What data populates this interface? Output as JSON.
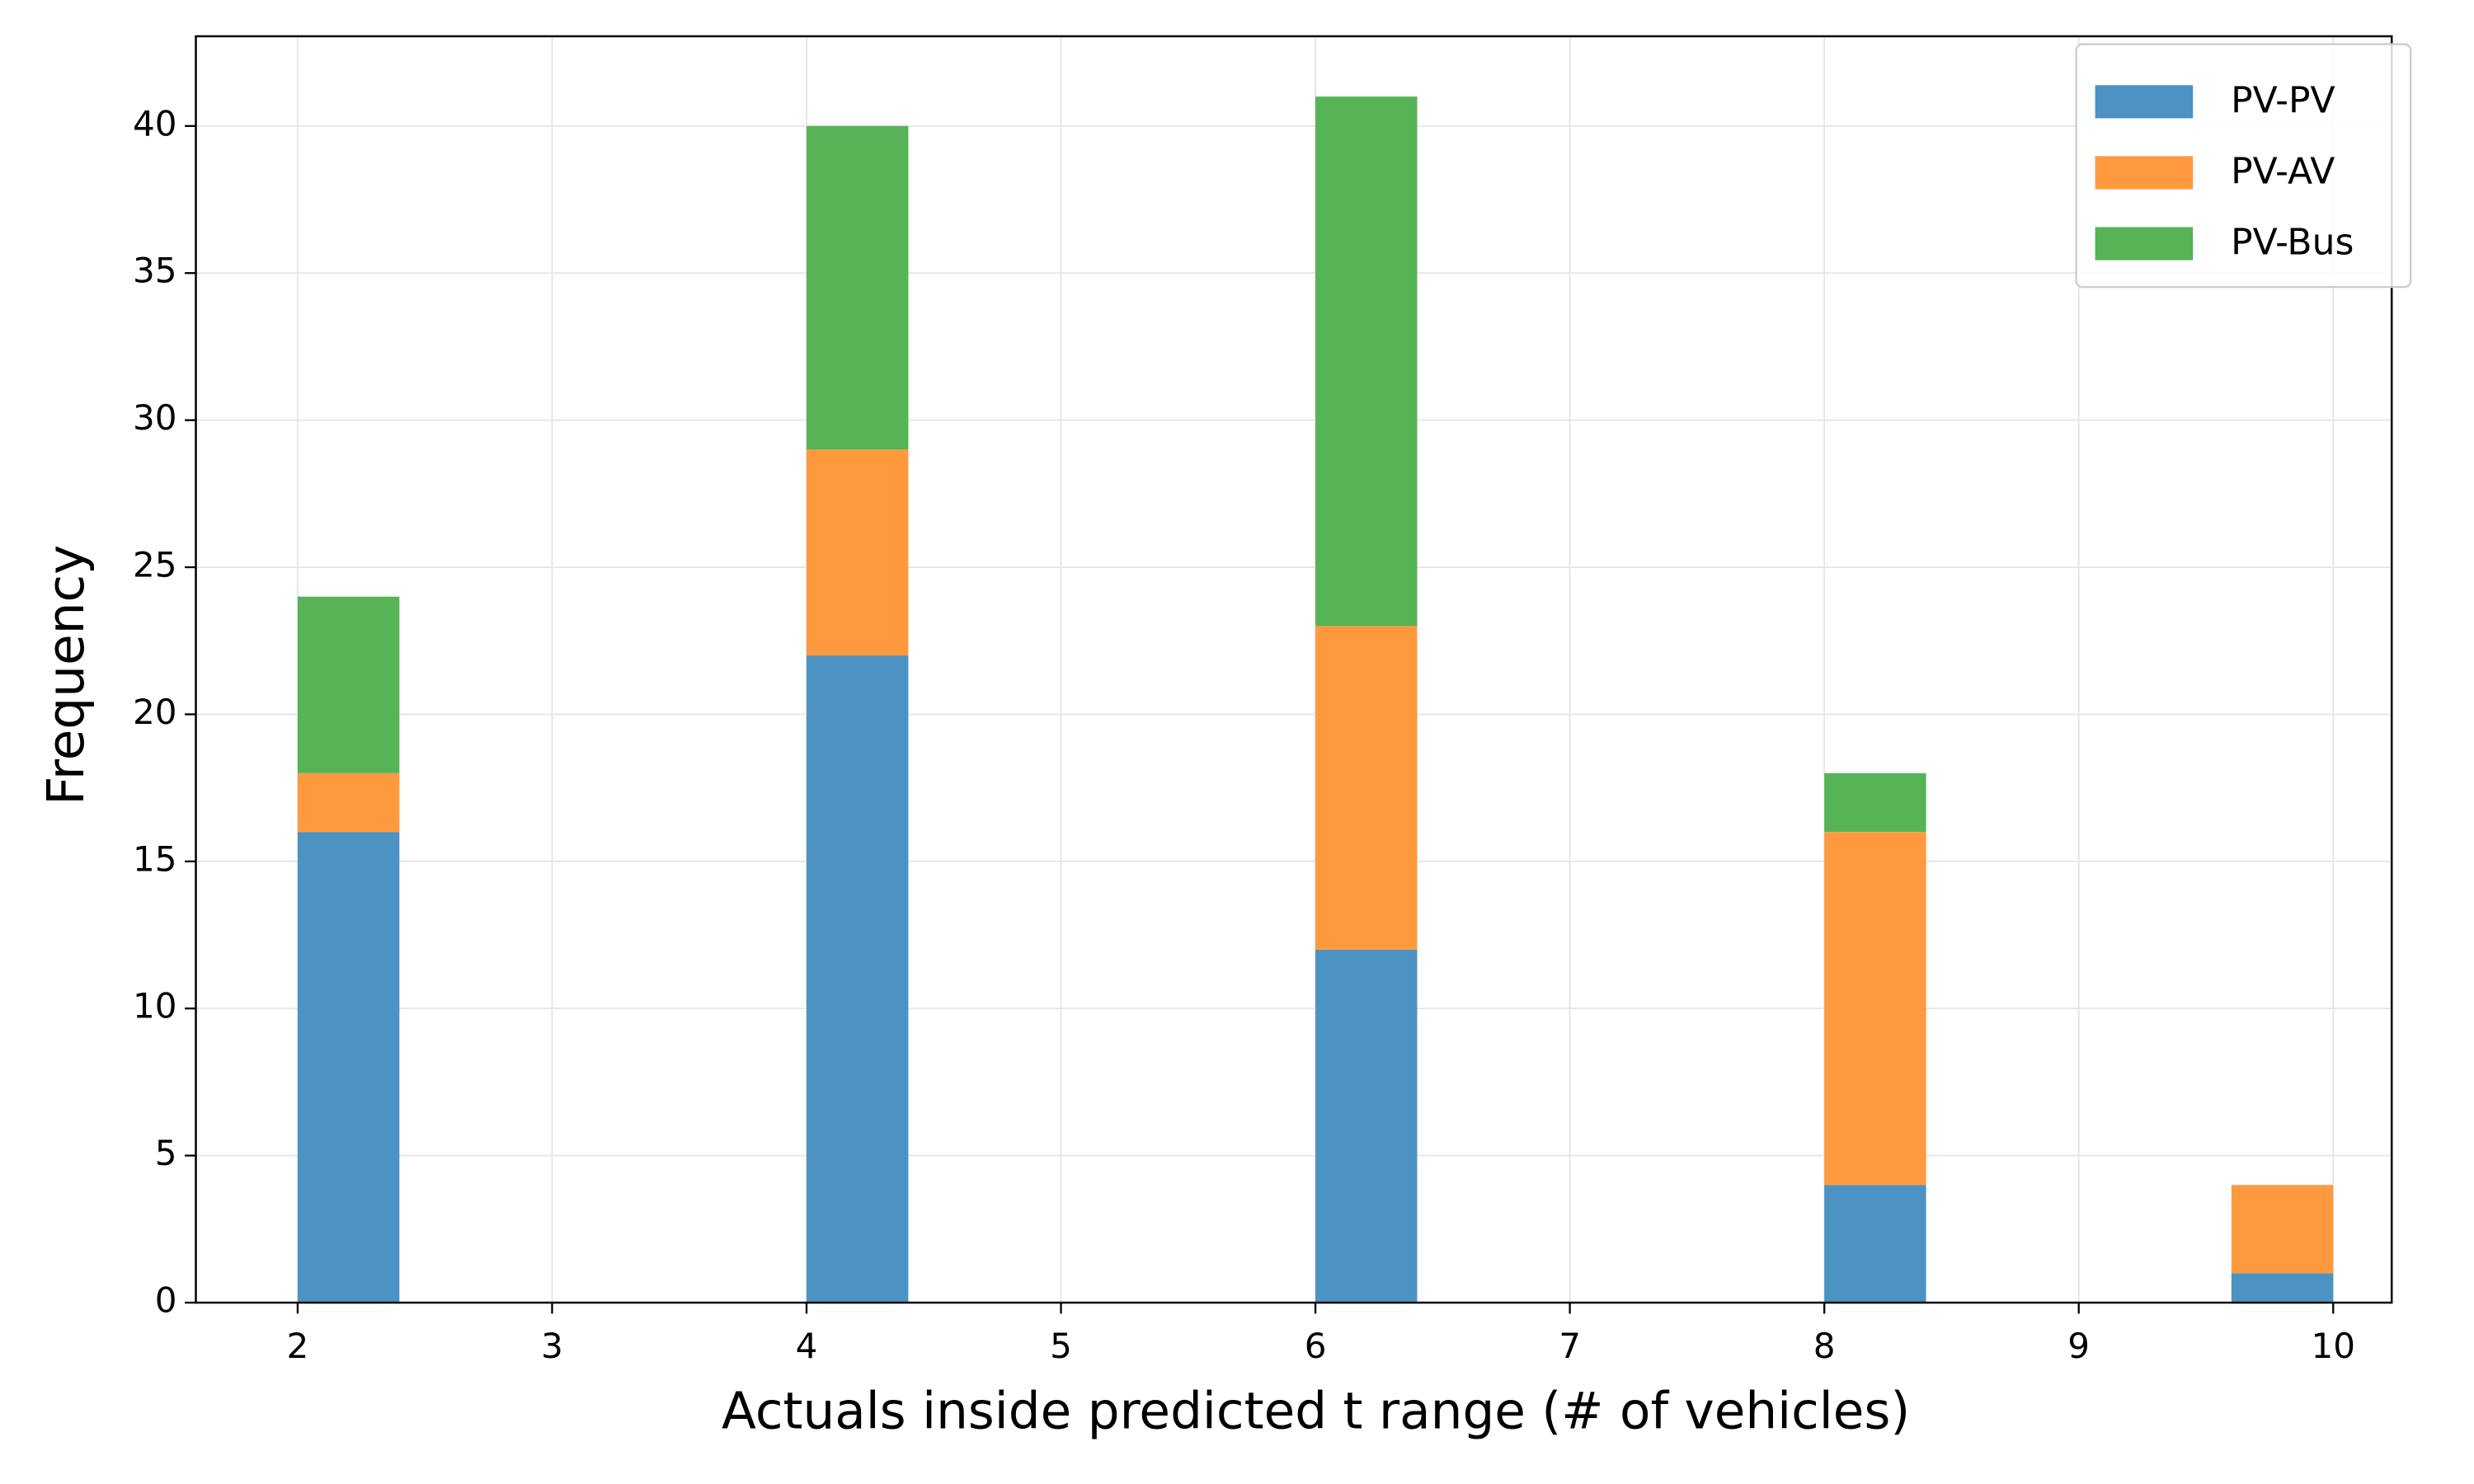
{
  "chart_data": {
    "type": "stacked-histogram",
    "xlabel": "Actuals inside predicted t range (# of vehicles)",
    "ylabel": "Frequency",
    "bins": [
      2,
      2.4,
      2.8,
      3.2,
      3.6,
      4,
      4.4,
      4.8,
      5.2,
      5.6,
      6,
      6.4,
      6.8,
      7.2,
      7.6,
      8,
      8.4,
      8.8,
      9.2,
      9.6,
      10
    ],
    "series": [
      {
        "name": "PV-PV",
        "color": "#4c92c3",
        "values": [
          16,
          0,
          0,
          0,
          0,
          22,
          0,
          0,
          0,
          0,
          12,
          0,
          0,
          0,
          0,
          4,
          0,
          0,
          0,
          1
        ]
      },
      {
        "name": "PV-AV",
        "color": "#ff993e",
        "values": [
          2,
          0,
          0,
          0,
          0,
          7,
          0,
          0,
          0,
          0,
          11,
          0,
          0,
          0,
          0,
          12,
          0,
          0,
          0,
          3
        ]
      },
      {
        "name": "PV-Bus",
        "color": "#56b356",
        "values": [
          6,
          0,
          0,
          0,
          0,
          11,
          0,
          0,
          0,
          0,
          18,
          0,
          0,
          0,
          0,
          2,
          0,
          0,
          0,
          0
        ]
      }
    ],
    "xlim": [
      1.6,
      10.23
    ],
    "ylim": [
      0,
      43.05
    ],
    "xticks": [
      2,
      3,
      4,
      5,
      6,
      7,
      8,
      9,
      10
    ],
    "yticks": [
      0,
      5,
      10,
      15,
      20,
      25,
      30,
      35,
      40
    ],
    "grid": true,
    "legend": "upper right"
  }
}
